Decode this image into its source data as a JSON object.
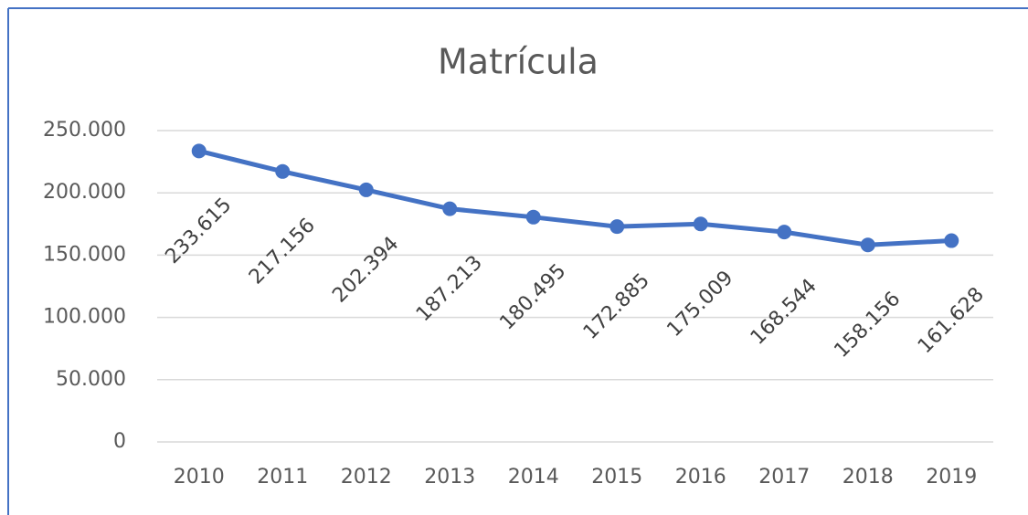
{
  "chart_data": {
    "type": "line",
    "title": "Matrícula",
    "categories": [
      "2010",
      "2011",
      "2012",
      "2013",
      "2014",
      "2015",
      "2016",
      "2017",
      "2018",
      "2019"
    ],
    "series": [
      {
        "name": "Matrícula",
        "color": "#4472c4",
        "values": [
          233615,
          217156,
          202394,
          187213,
          180495,
          172885,
          175009,
          168544,
          158156,
          161628
        ],
        "value_labels": [
          "233.615",
          "217.156",
          "202.394",
          "187.213",
          "180.495",
          "172.885",
          "175.009",
          "168.544",
          "158.156",
          "161.628"
        ]
      }
    ],
    "ylim": [
      0,
      250000
    ],
    "yticks": [
      0,
      {
        "value": 50000,
        "label": "50.000"
      },
      {
        "value": 100000,
        "label": "100.000"
      },
      {
        "value": 150000,
        "label": "150.000"
      },
      {
        "value": 200000,
        "label": "200.000"
      },
      {
        "value": 250000,
        "label": "250.000"
      }
    ],
    "grid": true
  }
}
